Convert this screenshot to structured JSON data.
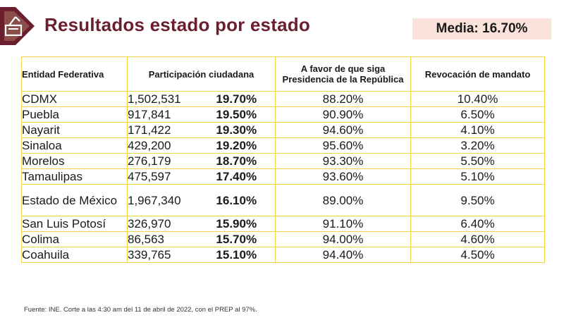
{
  "header": {
    "title": "Resultados estado por estado",
    "media_label": "Media: 16.70%",
    "logo_icon": "ballot-box-icon",
    "accent_color": "#6b1f2e",
    "media_bg_color": "#fbe3dc",
    "grid_color": "#f1d44a"
  },
  "table": {
    "headers": {
      "entidad": "Entidad Federativa",
      "participacion": "Participación ciudadana",
      "favor": "A favor de que siga Presidencia de la República",
      "revocacion": "Revocación de mandato"
    },
    "rows": [
      {
        "estado": "CDMX",
        "votos": "1,502,531",
        "participacion": "19.70%",
        "favor": "88.20%",
        "revocacion": "10.40%"
      },
      {
        "estado": "Puebla",
        "votos": "917,841",
        "participacion": "19.50%",
        "favor": "90.90%",
        "revocacion": "6.50%"
      },
      {
        "estado": "Nayarit",
        "votos": "171,422",
        "participacion": "19.30%",
        "favor": "94.60%",
        "revocacion": "4.10%"
      },
      {
        "estado": "Sinaloa",
        "votos": "429,200",
        "participacion": "19.20%",
        "favor": "95.60%",
        "revocacion": "3.20%"
      },
      {
        "estado": "Morelos",
        "votos": "276,179",
        "participacion": "18.70%",
        "favor": "93.30%",
        "revocacion": "5.50%"
      },
      {
        "estado": "Tamaulipas",
        "votos": "475,597",
        "participacion": "17.40%",
        "favor": "93.60%",
        "revocacion": "5.10%"
      },
      {
        "estado": "Estado de México",
        "votos": "1,967,340",
        "participacion": "16.10%",
        "favor": "89.00%",
        "revocacion": "9.50%"
      },
      {
        "estado": "San Luis Potosí",
        "votos": "326,970",
        "participacion": "15.90%",
        "favor": "91.10%",
        "revocacion": "6.40%"
      },
      {
        "estado": "Colima",
        "votos": "86,563",
        "participacion": "15.70%",
        "favor": "94.00%",
        "revocacion": "4.60%"
      },
      {
        "estado": "Coahuila",
        "votos": "339,765",
        "participacion": "15.10%",
        "favor": "94.40%",
        "revocacion": "4.50%"
      }
    ]
  },
  "footer": {
    "source": "Fuente: INE. Corte a las 4:30 am del 11 de abril de 2022, con el PREP al 97%."
  }
}
